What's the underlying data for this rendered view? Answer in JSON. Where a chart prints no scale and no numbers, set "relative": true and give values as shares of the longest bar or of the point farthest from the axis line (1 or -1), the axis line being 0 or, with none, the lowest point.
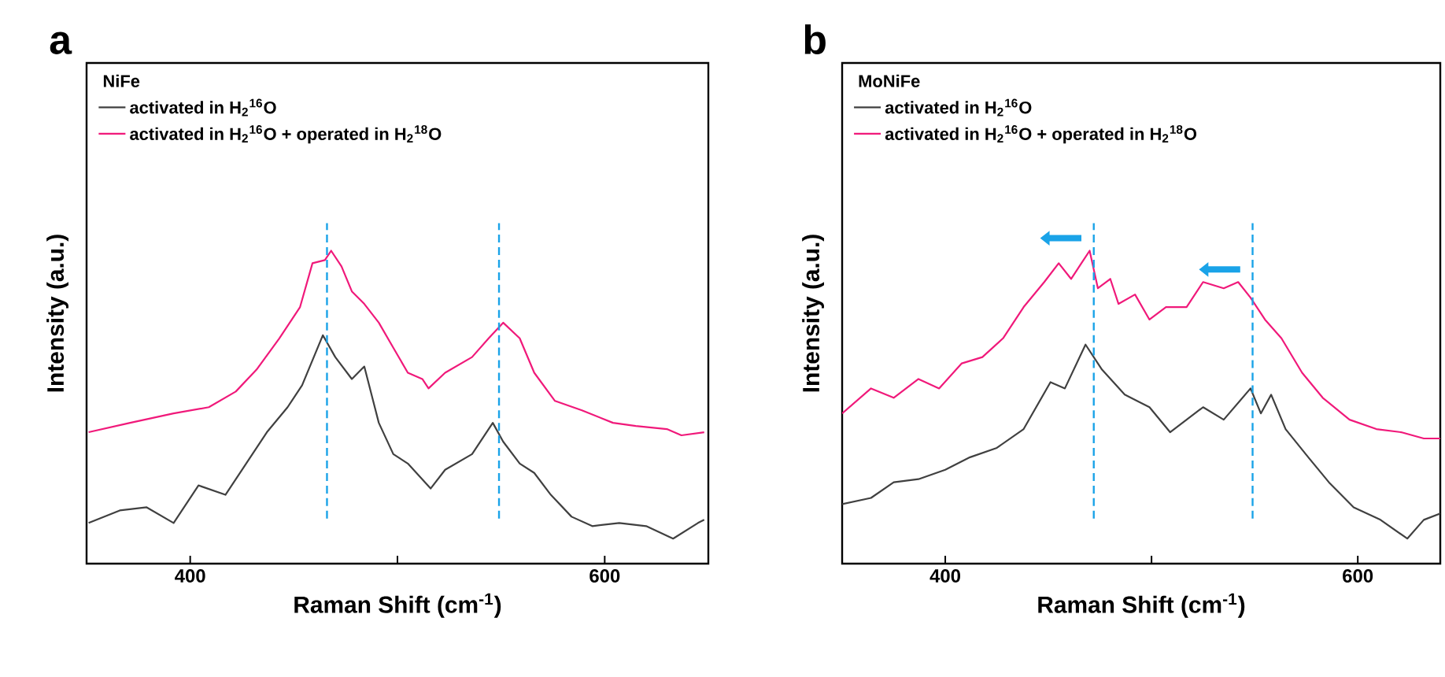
{
  "chart_data": [
    {
      "type": "line",
      "title": "a",
      "legend_title": "NiFe",
      "xlabel": "Raman Shift (cm$^{-1}$)",
      "ylabel": "Intensity (a.u.)",
      "relative": true,
      "xlim": [
        350,
        650
      ],
      "xticks": [
        400,
        {
          "value": 500,
          "label": null
        },
        600
      ],
      "tick_labels": "x",
      "legend": "top left",
      "marker": "none",
      "line_style": "solid",
      "series": [
        {
          "name": "activated in H$_{2}$$^{16}$O",
          "color": "#404040",
          "x": [
            351,
            366,
            379,
            392,
            404,
            417,
            427,
            437,
            447,
            454,
            464,
            470,
            478,
            484,
            491,
            498,
            505,
            516,
            523,
            536,
            546,
            551,
            559,
            566,
            574,
            584,
            594,
            607,
            620,
            633,
            645,
            648
          ],
          "values": [
            0.13,
            0.17,
            0.18,
            0.13,
            0.25,
            0.22,
            0.32,
            0.42,
            0.5,
            0.57,
            0.73,
            0.66,
            0.59,
            0.63,
            0.45,
            0.35,
            0.32,
            0.24,
            0.3,
            0.35,
            0.45,
            0.39,
            0.32,
            0.29,
            0.22,
            0.15,
            0.12,
            0.13,
            0.12,
            0.08,
            0.13,
            0.14
          ]
        },
        {
          "name": "activated in H$_{2}$$^{16}$O + operated in H$_{2}$$^{18}$O",
          "color": "#f0197a",
          "x": [
            351,
            371,
            392,
            409,
            422,
            432,
            443,
            453,
            459,
            465,
            468,
            473,
            478,
            484,
            491,
            498,
            505,
            512,
            515,
            523,
            536,
            544,
            551,
            559,
            566,
            576,
            589,
            604,
            615,
            630,
            637,
            648
          ],
          "values": [
            0.42,
            0.45,
            0.48,
            0.5,
            0.55,
            0.62,
            0.72,
            0.82,
            0.96,
            0.97,
            1,
            0.95,
            0.87,
            0.83,
            0.77,
            0.69,
            0.61,
            0.59,
            0.56,
            0.61,
            0.66,
            0.72,
            0.77,
            0.72,
            0.61,
            0.52,
            0.49,
            0.45,
            0.44,
            0.43,
            0.41,
            0.42
          ]
        }
      ],
      "ref_lines": [
        {
          "axis": "x",
          "value": 466,
          "color": "#1aa3e8",
          "line_style": "dashed"
        },
        {
          "axis": "x",
          "value": 549,
          "color": "#1aa3e8",
          "line_style": "dashed"
        }
      ]
    },
    {
      "type": "line",
      "title": "b",
      "legend_title": "MoNiFe",
      "xlabel": "Raman Shift (cm$^{-1}$)",
      "ylabel": "Intensity (a.u.)",
      "relative": true,
      "xlim": [
        350,
        640
      ],
      "xticks": [
        400,
        {
          "value": 500,
          "label": null
        },
        600
      ],
      "tick_labels": "x",
      "legend": "top left",
      "marker": "none",
      "line_style": "solid",
      "series": [
        {
          "name": "activated in H$_{2}$$^{16}$O",
          "color": "#404040",
          "x": [
            350,
            364,
            375,
            387,
            400,
            412,
            425,
            438,
            451,
            458,
            468,
            476,
            487,
            499,
            509,
            525,
            535,
            548,
            553,
            558,
            565,
            576,
            586,
            598,
            611,
            624,
            632,
            640
          ],
          "values": [
            0.19,
            0.21,
            0.26,
            0.27,
            0.3,
            0.34,
            0.37,
            0.43,
            0.58,
            0.56,
            0.7,
            0.62,
            0.54,
            0.5,
            0.42,
            0.5,
            0.46,
            0.56,
            0.48,
            0.54,
            0.43,
            0.34,
            0.26,
            0.18,
            0.14,
            0.08,
            0.14,
            0.16
          ]
        },
        {
          "name": "activated in H$_{2}$$^{16}$O + operated in H$_{2}$$^{18}$O",
          "color": "#f0197a",
          "x": [
            350,
            364,
            375,
            387,
            397,
            408,
            418,
            428,
            438,
            448,
            455,
            461,
            466,
            470,
            474,
            480,
            484,
            492,
            499,
            507,
            517,
            525,
            535,
            542,
            548,
            555,
            563,
            573,
            583,
            596,
            609,
            621,
            632,
            640
          ],
          "values": [
            0.48,
            0.56,
            0.53,
            0.59,
            0.56,
            0.64,
            0.66,
            0.72,
            0.82,
            0.9,
            0.96,
            0.91,
            0.96,
            1,
            0.88,
            0.91,
            0.83,
            0.86,
            0.78,
            0.82,
            0.82,
            0.9,
            0.88,
            0.9,
            0.85,
            0.78,
            0.72,
            0.61,
            0.53,
            0.46,
            0.43,
            0.42,
            0.4,
            0.4
          ]
        }
      ],
      "ref_lines": [
        {
          "axis": "x",
          "value": 472,
          "color": "#1aa3e8",
          "line_style": "dashed"
        },
        {
          "axis": "x",
          "value": 549,
          "color": "#1aa3e8",
          "line_style": "dashed"
        }
      ]
    }
  ]
}
